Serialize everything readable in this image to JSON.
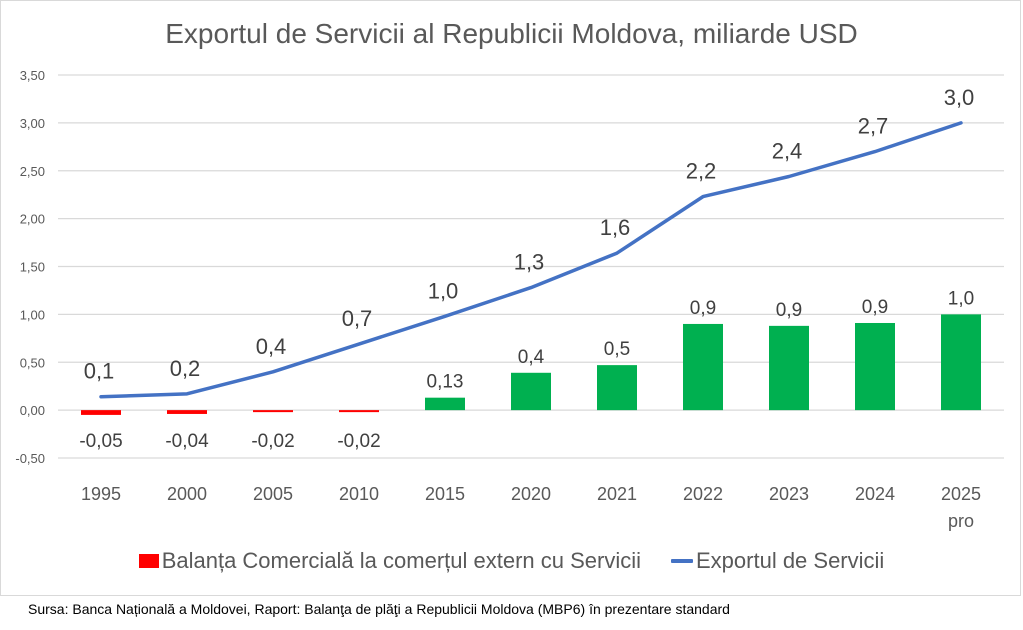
{
  "chart_data": {
    "type": "bar+line",
    "title": "Exportul de Servicii al Republicii Moldova, miliarde USD",
    "xlabel": "",
    "ylabel": "",
    "categories": [
      "1995",
      "2000",
      "2005",
      "2010",
      "2015",
      "2020",
      "2021",
      "2022",
      "2023",
      "2024",
      "2025"
    ],
    "category_sublabels": [
      "",
      "",
      "",
      "",
      "",
      "",
      "",
      "",
      "",
      "",
      "pro"
    ],
    "ylim": [
      -0.5,
      3.5
    ],
    "yticks": [
      "3,50",
      "3,00",
      "2,50",
      "2,00",
      "1,50",
      "1,00",
      "0,50",
      "0,00",
      "-0,50"
    ],
    "ytick_values": [
      3.5,
      3.0,
      2.5,
      2.0,
      1.5,
      1.0,
      0.5,
      0.0,
      -0.5
    ],
    "grid": true,
    "legend_position": "bottom",
    "series": [
      {
        "name": "Balanța Comercială la comerțul extern cu Servicii",
        "type": "bar",
        "color": "#00b050",
        "negative_color": "#ff0000",
        "legend_color": "#ff0000",
        "values": [
          -0.05,
          -0.04,
          -0.02,
          -0.02,
          0.13,
          0.39,
          0.47,
          0.9,
          0.88,
          0.91,
          1.0
        ],
        "labels": [
          "-0,05",
          "-0,04",
          "-0,02",
          "-0,02",
          "0,13",
          "0,4",
          "0,5",
          "0,9",
          "0,9",
          "0,9",
          "1,0"
        ]
      },
      {
        "name": "Exportul de Servicii",
        "type": "line",
        "color": "#4472c4",
        "values": [
          0.14,
          0.17,
          0.4,
          0.69,
          0.98,
          1.28,
          1.64,
          2.23,
          2.44,
          2.7,
          3.0
        ],
        "labels": [
          "0,1",
          "0,2",
          "0,4",
          "0,7",
          "1,0",
          "1,3",
          "1,6",
          "2,2",
          "2,4",
          "2,7",
          "3,0"
        ]
      }
    ]
  },
  "legend": {
    "bar_label": "Balanța Comercială la comerțul extern cu Servicii",
    "line_label": "Exportul de Servicii"
  },
  "source_note": "Sursa: Banca Națională a Moldovei, Raport: Balanţa de plăţi a Republicii Moldova (MBP6) în prezentare standard"
}
